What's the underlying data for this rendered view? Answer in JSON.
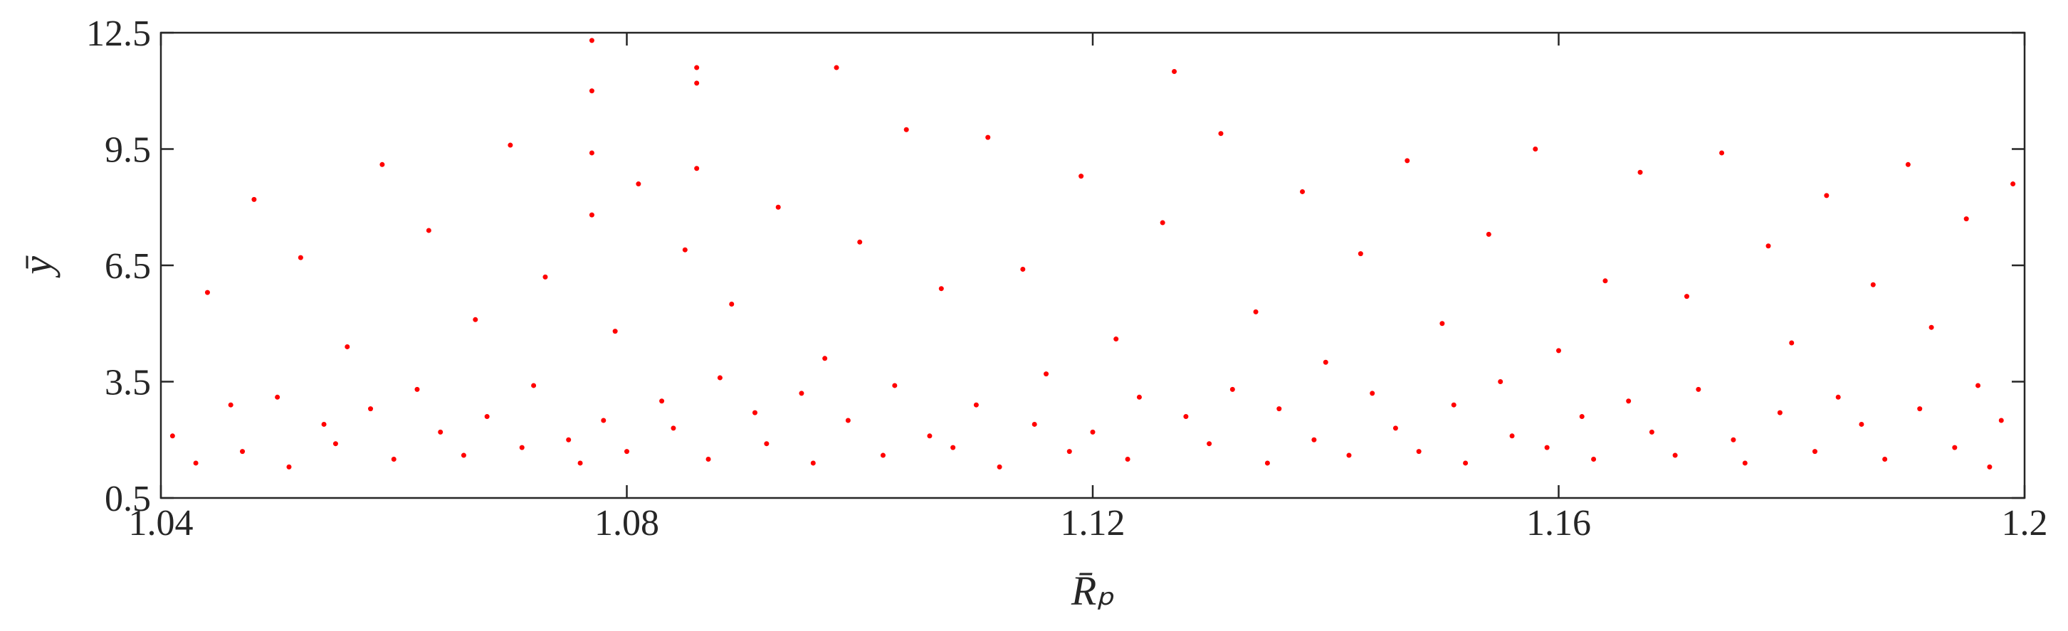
{
  "chart_data": {
    "type": "scatter",
    "x_label": "R̄ₚ",
    "y_label": "ȳ",
    "color": "#ff0000",
    "xlim": [
      1.04,
      1.2
    ],
    "ylim": [
      0.5,
      12.5
    ],
    "xticks": [
      1.04,
      1.08,
      1.12,
      1.16,
      1.2
    ],
    "yticks": [
      0.5,
      3.5,
      6.5,
      9.5,
      12.5
    ],
    "x": [
      1.041,
      1.043,
      1.044,
      1.046,
      1.047,
      1.048,
      1.05,
      1.051,
      1.052,
      1.054,
      1.055,
      1.056,
      1.058,
      1.059,
      1.06,
      1.062,
      1.063,
      1.064,
      1.066,
      1.067,
      1.068,
      1.07,
      1.071,
      1.072,
      1.073,
      1.075,
      1.076,
      1.077,
      1.077,
      1.077,
      1.077,
      1.078,
      1.079,
      1.08,
      1.081,
      1.083,
      1.084,
      1.085,
      1.086,
      1.086,
      1.086,
      1.087,
      1.088,
      1.089,
      1.091,
      1.092,
      1.093,
      1.095,
      1.096,
      1.097,
      1.098,
      1.099,
      1.1,
      1.102,
      1.103,
      1.104,
      1.106,
      1.107,
      1.108,
      1.11,
      1.111,
      1.112,
      1.114,
      1.115,
      1.116,
      1.118,
      1.119,
      1.12,
      1.122,
      1.123,
      1.124,
      1.126,
      1.127,
      1.128,
      1.13,
      1.131,
      1.132,
      1.134,
      1.135,
      1.136,
      1.138,
      1.139,
      1.14,
      1.142,
      1.143,
      1.144,
      1.146,
      1.147,
      1.148,
      1.15,
      1.151,
      1.152,
      1.154,
      1.155,
      1.156,
      1.158,
      1.159,
      1.16,
      1.162,
      1.163,
      1.164,
      1.166,
      1.167,
      1.168,
      1.17,
      1.171,
      1.172,
      1.174,
      1.175,
      1.176,
      1.178,
      1.179,
      1.18,
      1.182,
      1.183,
      1.184,
      1.186,
      1.187,
      1.188,
      1.19,
      1.191,
      1.192,
      1.194,
      1.195,
      1.196,
      1.197,
      1.198,
      1.199
    ],
    "values": [
      2.1,
      1.4,
      5.8,
      2.9,
      1.7,
      8.2,
      3.1,
      1.3,
      6.7,
      2.4,
      1.9,
      4.4,
      2.8,
      9.1,
      1.5,
      3.3,
      7.4,
      2.2,
      1.6,
      5.1,
      2.6,
      9.6,
      1.8,
      3.4,
      6.2,
      2.0,
      1.4,
      12.3,
      11.0,
      9.4,
      7.8,
      2.5,
      4.8,
      1.7,
      8.6,
      3.0,
      2.3,
      6.9,
      11.6,
      11.2,
      9.0,
      1.5,
      3.6,
      5.5,
      2.7,
      1.9,
      8.0,
      3.2,
      1.4,
      4.1,
      11.6,
      2.5,
      7.1,
      1.6,
      3.4,
      10.0,
      2.1,
      5.9,
      1.8,
      2.9,
      9.8,
      1.3,
      6.4,
      2.4,
      3.7,
      1.7,
      8.8,
      2.2,
      4.6,
      1.5,
      3.1,
      7.6,
      11.5,
      2.6,
      1.9,
      9.9,
      3.3,
      5.3,
      1.4,
      2.8,
      8.4,
      2.0,
      4.0,
      1.6,
      6.8,
      3.2,
      2.3,
      9.2,
      1.7,
      5.0,
      2.9,
      1.4,
      7.3,
      3.5,
      2.1,
      9.5,
      1.8,
      4.3,
      2.6,
      1.5,
      6.1,
      3.0,
      8.9,
      2.2,
      1.6,
      5.7,
      3.3,
      9.4,
      2.0,
      1.4,
      7.0,
      2.7,
      4.5,
      1.7,
      8.3,
      3.1,
      2.4,
      6.0,
      1.5,
      9.1,
      2.8,
      4.9,
      1.8,
      7.7,
      3.4,
      1.3,
      2.5,
      8.6
    ]
  }
}
